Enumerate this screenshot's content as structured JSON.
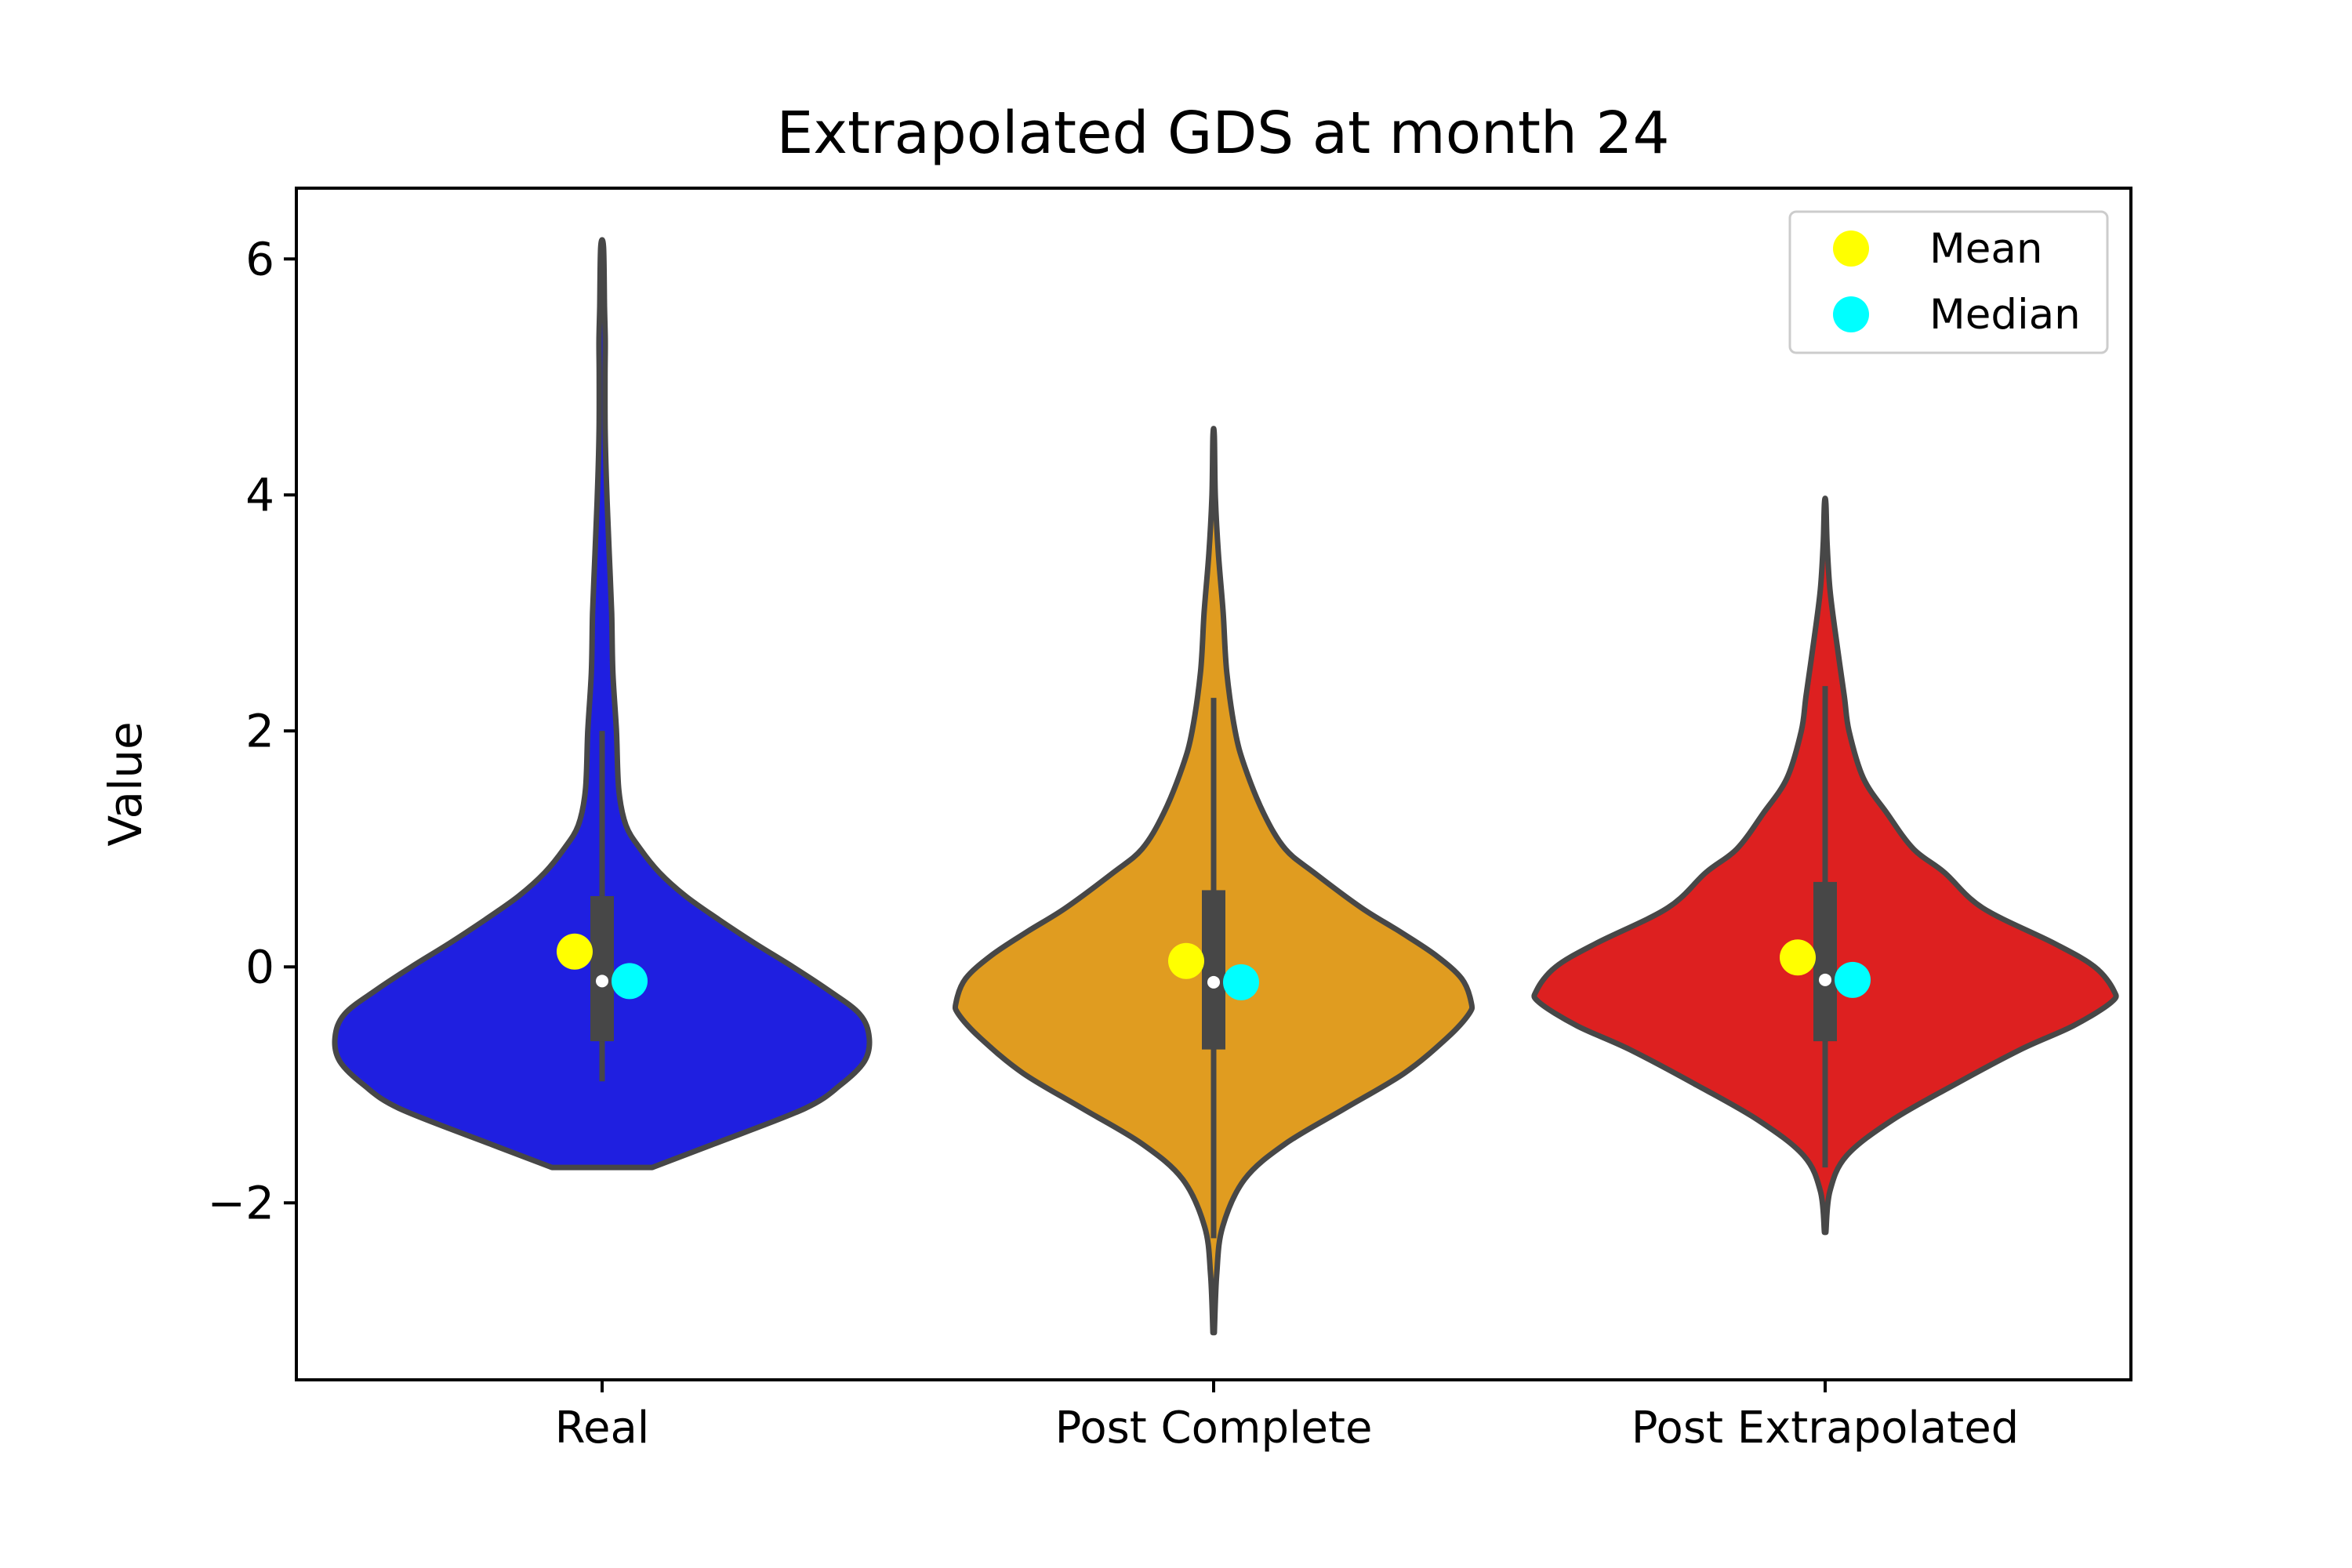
{
  "chart_data": {
    "type": "violin",
    "title": "Extrapolated GDS at month 24",
    "xlabel": "",
    "ylabel": "Value",
    "ylim": [
      -3.5,
      6.6
    ],
    "yticks": [
      {
        "value": -2,
        "label": "−2"
      },
      {
        "value": 0,
        "label": "0"
      },
      {
        "value": 2,
        "label": "2"
      },
      {
        "value": 4,
        "label": "4"
      },
      {
        "value": 6,
        "label": "6"
      }
    ],
    "grid": false,
    "legend": {
      "placement": "top-right",
      "entries": [
        {
          "name": "Mean",
          "color": "#ffff00"
        },
        {
          "name": "Median",
          "color": "#00ffff"
        }
      ]
    },
    "series": [
      {
        "category": "Real",
        "color": "#1f1fe0",
        "min": -1.7,
        "max": 6.1,
        "whisker_low": -0.97,
        "whisker_high": 2.0,
        "q1": -0.63,
        "q3": 0.6,
        "median": -0.12,
        "mean": 0.13,
        "density": [
          [
            -1.7,
            0.21
          ],
          [
            -1.5,
            0.47
          ],
          [
            -1.2,
            0.85
          ],
          [
            -1.0,
            1.0
          ],
          [
            -0.8,
            1.1
          ],
          [
            -0.6,
            1.12
          ],
          [
            -0.4,
            1.08
          ],
          [
            -0.2,
            0.95
          ],
          [
            0.0,
            0.8
          ],
          [
            0.2,
            0.64
          ],
          [
            0.4,
            0.49
          ],
          [
            0.6,
            0.35
          ],
          [
            0.8,
            0.24
          ],
          [
            1.0,
            0.16
          ],
          [
            1.2,
            0.1
          ],
          [
            1.5,
            0.07
          ],
          [
            2.0,
            0.06
          ],
          [
            2.5,
            0.045
          ],
          [
            3.0,
            0.04
          ],
          [
            3.5,
            0.03
          ],
          [
            4.0,
            0.02
          ],
          [
            4.5,
            0.013
          ],
          [
            5.0,
            0.012
          ],
          [
            5.3,
            0.013
          ],
          [
            5.6,
            0.01
          ],
          [
            6.1,
            0.006
          ]
        ]
      },
      {
        "category": "Post Complete",
        "color": "#e09c20",
        "min": -3.1,
        "max": 4.5,
        "whisker_low": -2.3,
        "whisker_high": 2.28,
        "q1": -0.7,
        "q3": 0.65,
        "median": -0.13,
        "mean": 0.05,
        "density": [
          [
            -3.1,
            0.003
          ],
          [
            -2.6,
            0.013
          ],
          [
            -2.2,
            0.038
          ],
          [
            -1.8,
            0.13
          ],
          [
            -1.5,
            0.3
          ],
          [
            -1.2,
            0.55
          ],
          [
            -0.9,
            0.8
          ],
          [
            -0.6,
            0.98
          ],
          [
            -0.4,
            1.07
          ],
          [
            -0.3,
            1.08
          ],
          [
            -0.1,
            1.04
          ],
          [
            0.1,
            0.93
          ],
          [
            0.3,
            0.78
          ],
          [
            0.5,
            0.62
          ],
          [
            0.8,
            0.42
          ],
          [
            1.0,
            0.3
          ],
          [
            1.3,
            0.21
          ],
          [
            1.7,
            0.13
          ],
          [
            2.0,
            0.09
          ],
          [
            2.5,
            0.055
          ],
          [
            3.0,
            0.04
          ],
          [
            3.5,
            0.02
          ],
          [
            4.0,
            0.007
          ],
          [
            4.5,
            0.003
          ]
        ]
      },
      {
        "category": "Post Extrapolated",
        "color": "#dd2020",
        "min": -2.25,
        "max": 3.93,
        "whisker_low": -1.7,
        "whisker_high": 2.38,
        "q1": -0.63,
        "q3": 0.72,
        "median": -0.11,
        "mean": 0.08,
        "density": [
          [
            -2.25,
            0.003
          ],
          [
            -1.9,
            0.02
          ],
          [
            -1.6,
            0.09
          ],
          [
            -1.3,
            0.28
          ],
          [
            -1.0,
            0.54
          ],
          [
            -0.7,
            0.82
          ],
          [
            -0.5,
            1.04
          ],
          [
            -0.3,
            1.2
          ],
          [
            -0.2,
            1.21
          ],
          [
            0.0,
            1.13
          ],
          [
            0.2,
            0.96
          ],
          [
            0.5,
            0.66
          ],
          [
            0.8,
            0.5
          ],
          [
            1.0,
            0.37
          ],
          [
            1.3,
            0.26
          ],
          [
            1.6,
            0.16
          ],
          [
            2.0,
            0.1
          ],
          [
            2.3,
            0.08
          ],
          [
            2.8,
            0.045
          ],
          [
            3.2,
            0.02
          ],
          [
            3.6,
            0.008
          ],
          [
            3.93,
            0.003
          ]
        ]
      }
    ]
  }
}
